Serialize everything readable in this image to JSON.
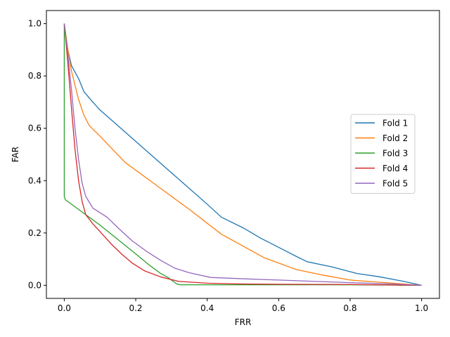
{
  "chart_data": {
    "type": "line",
    "title": "",
    "xlabel": "FRR",
    "ylabel": "FAR",
    "xlim": [
      -0.05,
      1.05
    ],
    "ylim": [
      -0.05,
      1.05
    ],
    "xticks": [
      0.0,
      0.2,
      0.4,
      0.6,
      0.8,
      1.0
    ],
    "yticks": [
      0.0,
      0.2,
      0.4,
      0.6,
      0.8,
      1.0
    ],
    "xtick_labels": [
      "0.0",
      "0.2",
      "0.4",
      "0.6",
      "0.8",
      "1.0"
    ],
    "ytick_labels": [
      "0.0",
      "0.2",
      "0.4",
      "0.6",
      "0.8",
      "1.0"
    ],
    "grid": false,
    "legend_position": "right",
    "series": [
      {
        "name": "Fold 1",
        "color": "#1f77b4",
        "x": [
          0.0,
          0.01,
          0.02,
          0.04,
          0.055,
          0.08,
          0.1,
          0.15,
          0.2,
          0.25,
          0.3,
          0.35,
          0.4,
          0.44,
          0.5,
          0.55,
          0.6,
          0.65,
          0.68,
          0.75,
          0.82,
          0.88,
          0.95,
          1.0
        ],
        "y": [
          1.0,
          0.9,
          0.84,
          0.79,
          0.74,
          0.7,
          0.67,
          0.61,
          0.55,
          0.49,
          0.43,
          0.37,
          0.31,
          0.26,
          0.22,
          0.18,
          0.145,
          0.11,
          0.09,
          0.07,
          0.045,
          0.033,
          0.015,
          0.0
        ]
      },
      {
        "name": "Fold 2",
        "color": "#ff7f0e",
        "x": [
          0.0,
          0.01,
          0.02,
          0.04,
          0.055,
          0.07,
          0.1,
          0.17,
          0.25,
          0.35,
          0.44,
          0.5,
          0.56,
          0.65,
          0.72,
          0.8,
          0.9,
          1.0
        ],
        "y": [
          1.0,
          0.9,
          0.82,
          0.71,
          0.65,
          0.61,
          0.57,
          0.47,
          0.39,
          0.29,
          0.195,
          0.15,
          0.105,
          0.06,
          0.04,
          0.02,
          0.01,
          0.0
        ]
      },
      {
        "name": "Fold 3",
        "color": "#2ca02c",
        "x": [
          0.0,
          0.0,
          0.002,
          0.005,
          0.05,
          0.1,
          0.15,
          0.2,
          0.24,
          0.27,
          0.29,
          0.305,
          0.315,
          0.325,
          0.4,
          0.6,
          0.8,
          1.0
        ],
        "y": [
          1.0,
          0.34,
          0.33,
          0.325,
          0.28,
          0.23,
          0.175,
          0.12,
          0.075,
          0.045,
          0.03,
          0.015,
          0.005,
          0.002,
          0.002,
          0.002,
          0.002,
          0.0
        ]
      },
      {
        "name": "Fold 4",
        "color": "#d62728",
        "x": [
          0.0,
          0.01,
          0.02,
          0.03,
          0.04,
          0.05,
          0.06,
          0.08,
          0.1,
          0.13,
          0.16,
          0.19,
          0.225,
          0.27,
          0.32,
          0.4,
          0.5,
          0.6,
          0.8,
          1.0
        ],
        "y": [
          1.0,
          0.85,
          0.68,
          0.52,
          0.4,
          0.32,
          0.27,
          0.235,
          0.205,
          0.16,
          0.12,
          0.085,
          0.055,
          0.032,
          0.015,
          0.008,
          0.005,
          0.004,
          0.003,
          0.0
        ]
      },
      {
        "name": "Fold 5",
        "color": "#9467bd",
        "x": [
          0.0,
          0.01,
          0.02,
          0.03,
          0.04,
          0.05,
          0.06,
          0.08,
          0.12,
          0.15,
          0.19,
          0.23,
          0.27,
          0.31,
          0.35,
          0.41,
          0.5,
          0.6,
          0.7,
          0.8,
          0.9,
          1.0
        ],
        "y": [
          1.0,
          0.88,
          0.75,
          0.6,
          0.48,
          0.39,
          0.34,
          0.295,
          0.26,
          0.22,
          0.17,
          0.13,
          0.095,
          0.065,
          0.048,
          0.03,
          0.025,
          0.02,
          0.015,
          0.01,
          0.006,
          0.0
        ]
      }
    ]
  }
}
